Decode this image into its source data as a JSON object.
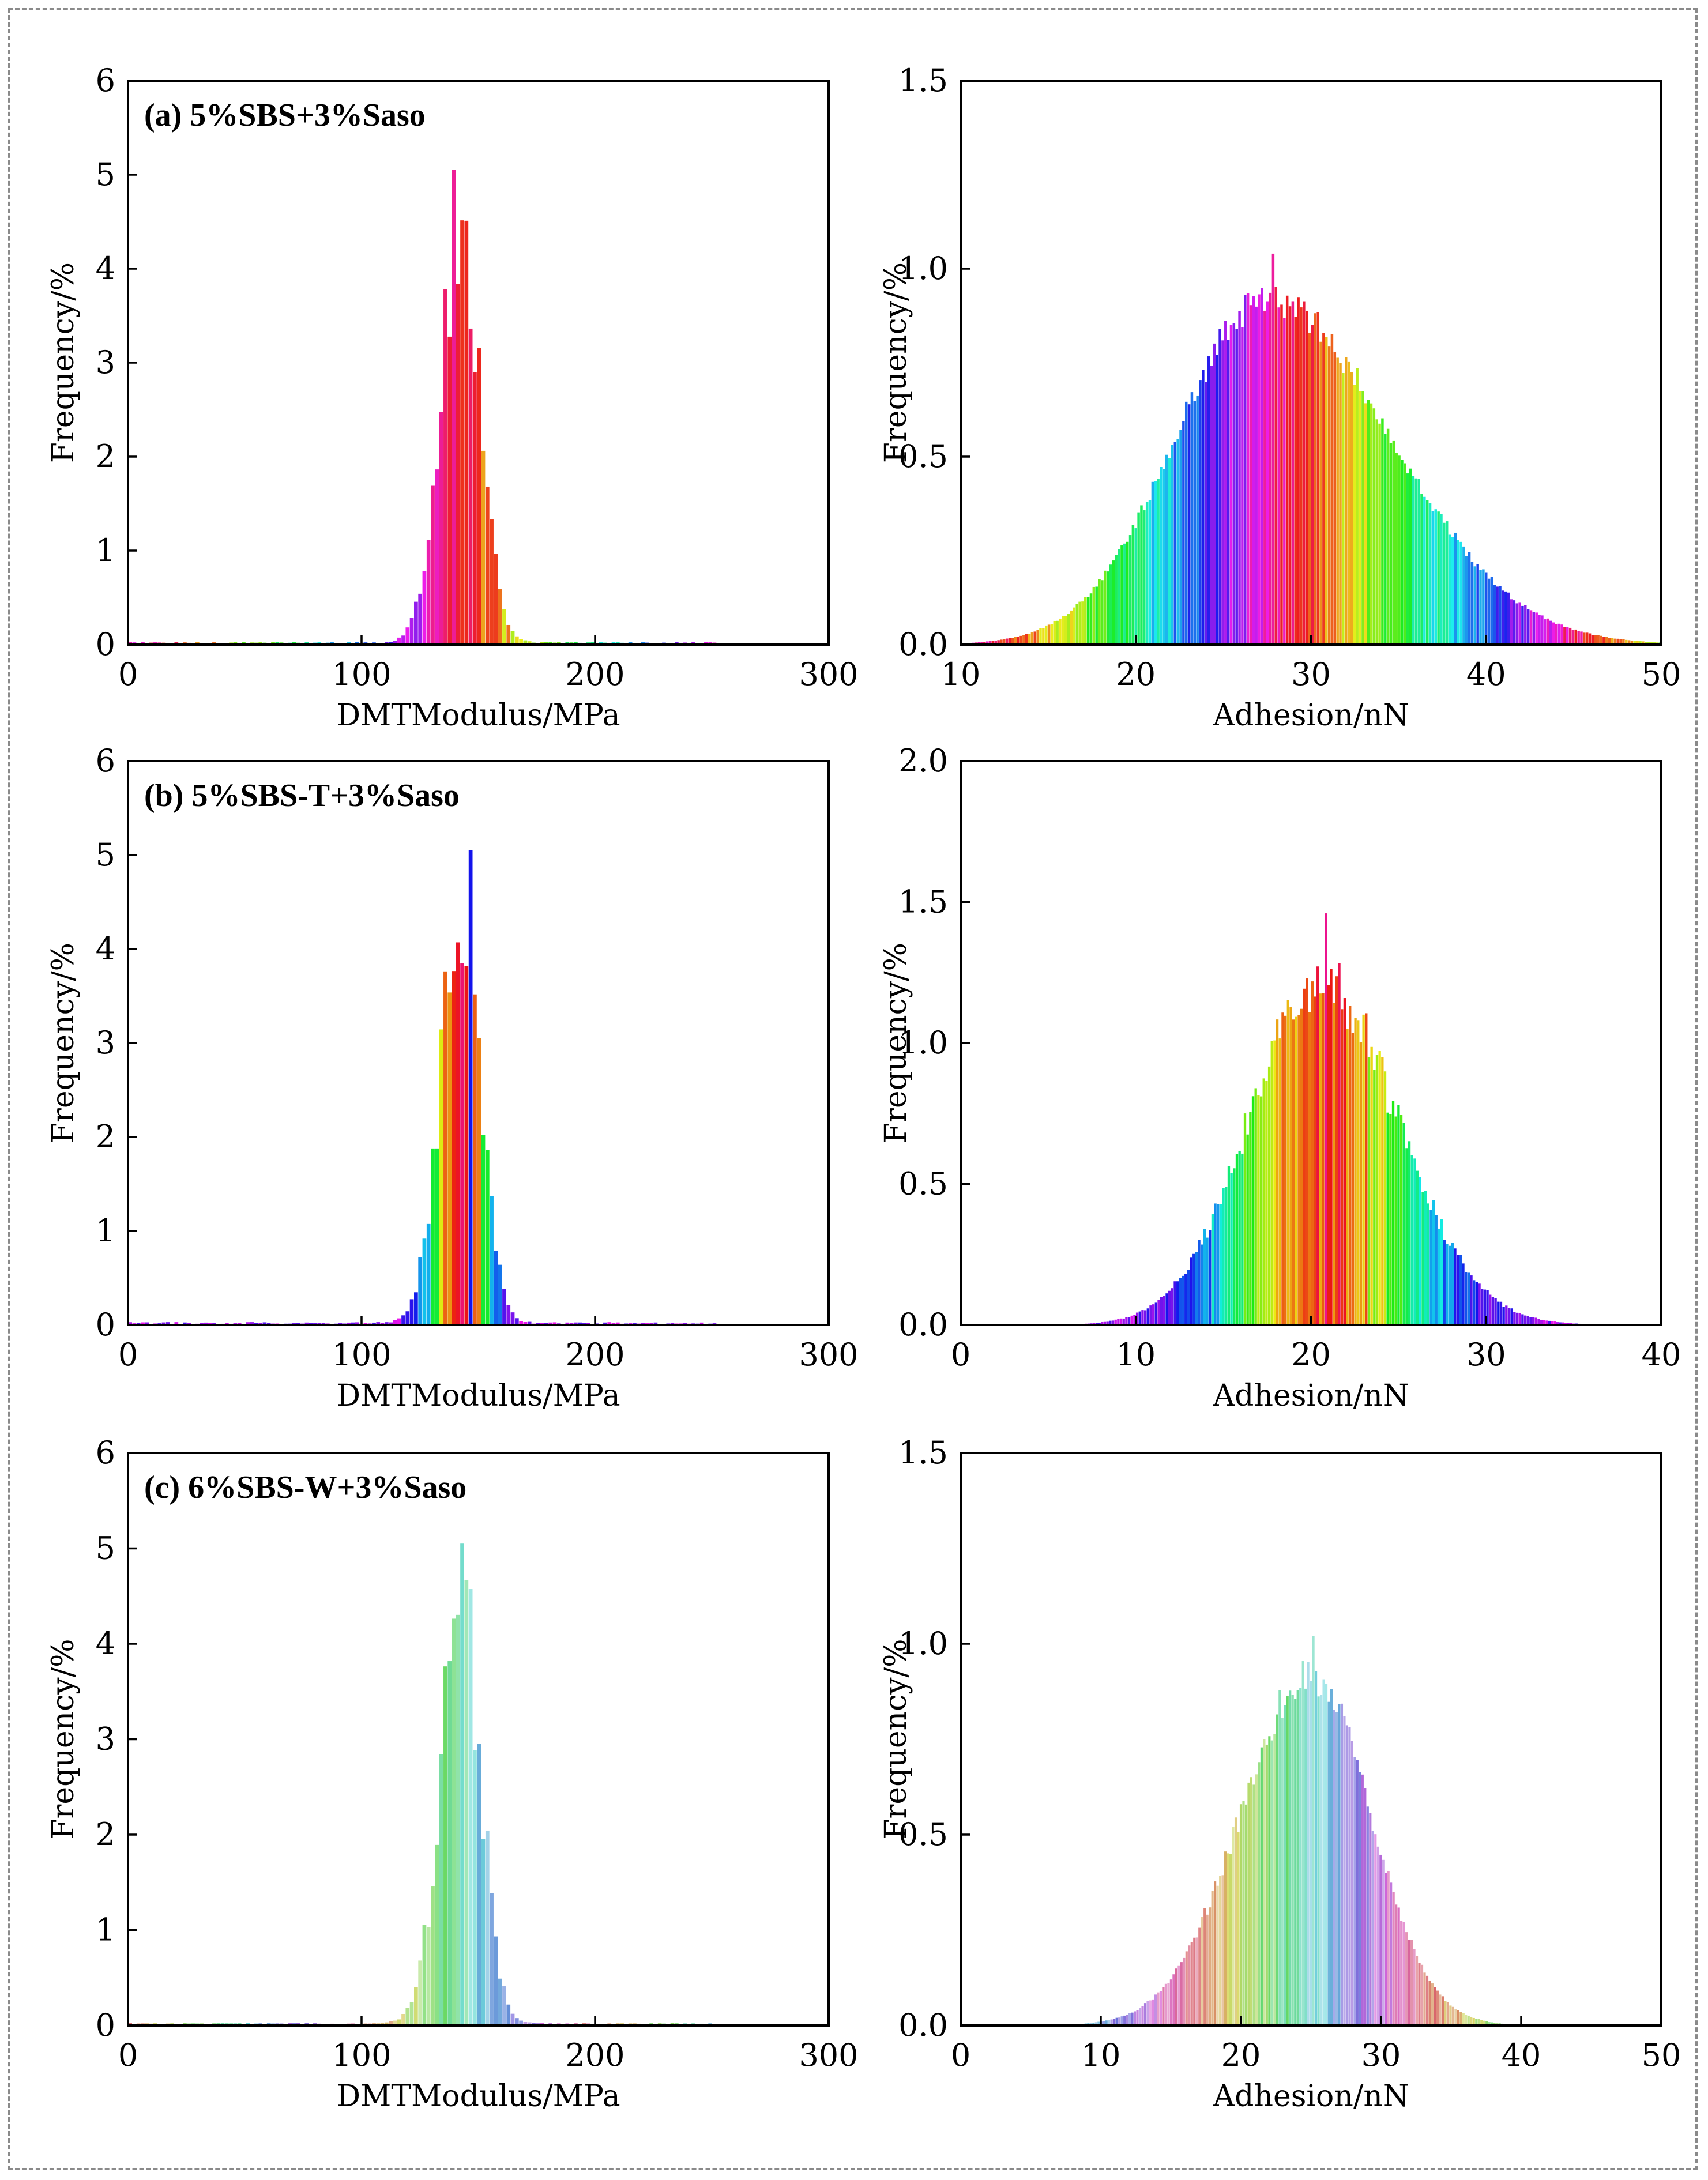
{
  "figure": {
    "border_color": "#8a8a8a",
    "description_note": "Six histograms: DMT modulus (left) and adhesion (right) for three asphalt samples"
  },
  "chart_data": [
    {
      "id": "a-modulus",
      "type": "bar",
      "title": "(a) 5%SBS+3%Saso",
      "xlabel": "DMTModulus/MPa",
      "ylabel": "Frequency/%",
      "xlim": [
        0,
        300
      ],
      "ylim": [
        0,
        6
      ],
      "xticks": [
        0,
        100,
        200,
        300
      ],
      "yticks": [
        0,
        1,
        2,
        3,
        4,
        5,
        6
      ],
      "ytick_labels": [
        "0",
        "1",
        "2",
        "3",
        "4",
        "5",
        "6"
      ],
      "distribution": {
        "peak_x": 143,
        "peak_y": 4.4,
        "sigma_left": 9,
        "sigma_right": 8,
        "max_bar": 5.05,
        "noise": 0.18,
        "baseline": 0.02
      },
      "range": [
        0,
        252
      ],
      "bins": 140,
      "color_mode": "rainbow-x"
    },
    {
      "id": "a-adhesion",
      "type": "bar",
      "title": "",
      "xlabel": "Adhesion/nN",
      "ylabel": "Frequency/%",
      "xlim": [
        10,
        50
      ],
      "ylim": [
        0,
        1.5
      ],
      "xticks": [
        10,
        20,
        30,
        40,
        50
      ],
      "yticks": [
        0,
        0.5,
        1.0,
        1.5
      ],
      "ytick_labels": [
        "0.0",
        "0.5",
        "1.0",
        "1.5"
      ],
      "distribution": {
        "peak_x": 27.5,
        "peak_y": 0.92,
        "sigma_left": 5.2,
        "sigma_right": 7.0,
        "max_bar": 1.04,
        "noise": 0.05,
        "baseline": 0.0
      },
      "range": [
        10,
        50
      ],
      "bins": 250,
      "color_mode": "rainbow-x"
    },
    {
      "id": "b-modulus",
      "type": "bar",
      "title": "(b) 5%SBS-T+3%Saso",
      "xlabel": "DMTModulus/MPa",
      "ylabel": "Frequency/%",
      "xlim": [
        0,
        300
      ],
      "ylim": [
        0,
        6
      ],
      "xticks": [
        0,
        100,
        200,
        300
      ],
      "yticks": [
        0,
        1,
        2,
        3,
        4,
        5,
        6
      ],
      "ytick_labels": [
        "0",
        "1",
        "2",
        "3",
        "4",
        "5",
        "6"
      ],
      "distribution": {
        "peak_x": 143,
        "peak_y": 4.4,
        "sigma_left": 9,
        "sigma_right": 8,
        "max_bar": 5.05,
        "noise": 0.18,
        "baseline": 0.02
      },
      "range": [
        0,
        252
      ],
      "bins": 140,
      "color_mode": "rainbow-y"
    },
    {
      "id": "b-adhesion",
      "type": "bar",
      "title": "",
      "xlabel": "Adhesion/nN",
      "ylabel": "Frequency/%",
      "xlim": [
        0,
        40
      ],
      "ylim": [
        0,
        2.0
      ],
      "xticks": [
        0,
        10,
        20,
        30,
        40
      ],
      "yticks": [
        0,
        0.5,
        1.0,
        1.5,
        2.0
      ],
      "ytick_labels": [
        "0.0",
        "0.5",
        "1.0",
        "1.5",
        "2.0"
      ],
      "distribution": {
        "peak_x": 20.5,
        "peak_y": 1.22,
        "sigma_left": 4.0,
        "sigma_right": 4.4,
        "max_bar": 1.46,
        "noise": 0.09,
        "baseline": 0.0
      },
      "range": [
        0,
        40
      ],
      "bins": 260,
      "color_mode": "rainbow-y"
    },
    {
      "id": "c-modulus",
      "type": "bar",
      "title": "(c) 6%SBS-W+3%Saso",
      "xlabel": "DMTModulus/MPa",
      "ylabel": "Frequency/%",
      "xlim": [
        0,
        300
      ],
      "ylim": [
        0,
        6
      ],
      "xticks": [
        0,
        100,
        200,
        300
      ],
      "yticks": [
        0,
        1,
        2,
        3,
        4,
        5,
        6
      ],
      "ytick_labels": [
        "0",
        "1",
        "2",
        "3",
        "4",
        "5",
        "6"
      ],
      "distribution": {
        "peak_x": 143,
        "peak_y": 4.4,
        "sigma_left": 9,
        "sigma_right": 8,
        "max_bar": 5.05,
        "noise": 0.18,
        "baseline": 0.02
      },
      "range": [
        0,
        252
      ],
      "bins": 140,
      "color_mode": "pastel-y"
    },
    {
      "id": "c-adhesion",
      "type": "bar",
      "title": "",
      "xlabel": "Adhesion/nN",
      "ylabel": "Frequency/%",
      "xlim": [
        0,
        50
      ],
      "ylim": [
        0,
        1.5
      ],
      "xticks": [
        0,
        10,
        20,
        30,
        40,
        50
      ],
      "yticks": [
        0,
        0.5,
        1.0,
        1.5
      ],
      "ytick_labels": [
        "0.0",
        "0.5",
        "1.0",
        "1.5"
      ],
      "distribution": {
        "peak_x": 25.0,
        "peak_y": 0.92,
        "sigma_left": 5.0,
        "sigma_right": 4.2,
        "max_bar": 1.02,
        "noise": 0.06,
        "baseline": 0.0
      },
      "range": [
        2,
        50
      ],
      "bins": 260,
      "color_mode": "pastel-y"
    }
  ]
}
